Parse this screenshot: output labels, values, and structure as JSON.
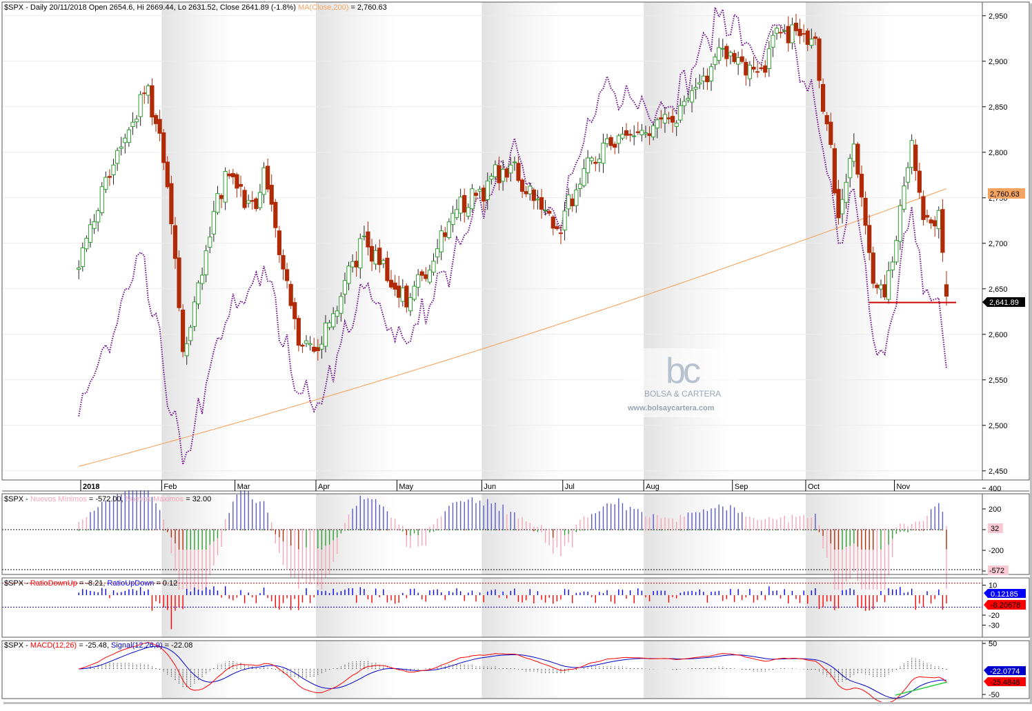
{
  "colors": {
    "up_candle": "#2e9e2e",
    "down_candle": "#b02a07",
    "ma200": "#f4a460",
    "breadth_line": "#6a0a8a",
    "support_line": "#cc0000",
    "new_lows_pink": "#f4a6b8",
    "new_highs_blue": "#5a5ac8",
    "ratio_red": "#ff0000",
    "ratio_blue": "#0000ff",
    "macd_red": "#ff0000",
    "signal_blue": "#0000cc",
    "trend_green": "#2ecc40"
  },
  "watermark": {
    "brand": "BOLSA & CARTERA",
    "url": "www.bolsaycartera.com"
  },
  "chart_data": [
    {
      "type": "candlestick",
      "panel": "price",
      "symbol": "$SPX",
      "title_parts": [
        "$SPX - Daily 20/11/2018 Open 2654.6, Hi 2669.44, Lo 2631.52, Close 2641.89 (-1.8%) ",
        "MA(Close,200)",
        " = 2,760.63"
      ],
      "x_tick_labels": [
        "2018",
        "Feb",
        "Mar",
        "Apr",
        "May",
        "Jun",
        "Jul",
        "Aug",
        "Sep",
        "Oct",
        "Nov"
      ],
      "y_tick_labels": [
        "2,950",
        "2,900",
        "2,850",
        "2,800",
        "2,750",
        "2,700",
        "2,650",
        "2,600",
        "2,550",
        "2,500",
        "2,450"
      ],
      "ylim": [
        2440,
        2965
      ],
      "last_close_label": "2,641.89",
      "ma200_label": "2,760.63",
      "support_level": 2635,
      "anchors": [
        {
          "date": "2017-12-29",
          "close": 2673
        },
        {
          "date": "2018-01-02",
          "close": 2695
        },
        {
          "date": "2018-01-12",
          "close": 2786
        },
        {
          "date": "2018-01-26",
          "close": 2873
        },
        {
          "date": "2018-02-02",
          "close": 2762
        },
        {
          "date": "2018-02-08",
          "close": 2581
        },
        {
          "date": "2018-02-26",
          "close": 2779
        },
        {
          "date": "2018-03-08",
          "close": 2738
        },
        {
          "date": "2018-03-12",
          "close": 2783
        },
        {
          "date": "2018-03-23",
          "close": 2588
        },
        {
          "date": "2018-04-02",
          "close": 2582
        },
        {
          "date": "2018-04-18",
          "close": 2708
        },
        {
          "date": "2018-05-03",
          "close": 2630
        },
        {
          "date": "2018-05-21",
          "close": 2733
        },
        {
          "date": "2018-06-12",
          "close": 2786
        },
        {
          "date": "2018-06-28",
          "close": 2716
        },
        {
          "date": "2018-07-17",
          "close": 2810
        },
        {
          "date": "2018-07-27",
          "close": 2818
        },
        {
          "date": "2018-08-10",
          "close": 2833
        },
        {
          "date": "2018-08-29",
          "close": 2914
        },
        {
          "date": "2018-09-12",
          "close": 2888
        },
        {
          "date": "2018-09-20",
          "close": 2931
        },
        {
          "date": "2018-10-03",
          "close": 2925
        },
        {
          "date": "2018-10-11",
          "close": 2728
        },
        {
          "date": "2018-10-17",
          "close": 2809
        },
        {
          "date": "2018-10-24",
          "close": 2656
        },
        {
          "date": "2018-10-29",
          "close": 2641
        },
        {
          "date": "2018-11-07",
          "close": 2813
        },
        {
          "date": "2018-11-12",
          "close": 2726
        },
        {
          "date": "2018-11-16",
          "close": 2736
        },
        {
          "date": "2018-11-19",
          "close": 2690
        },
        {
          "date": "2018-11-20",
          "open": 2654.6,
          "high": 2669.44,
          "low": 2631.52,
          "close": 2641.89
        }
      ],
      "breadth_line_anchors": [
        {
          "date": "2017-12-29",
          "value": 2510
        },
        {
          "date": "2018-01-12",
          "value": 2600
        },
        {
          "date": "2018-01-24",
          "value": 2690
        },
        {
          "date": "2018-02-08",
          "value": 2457
        },
        {
          "date": "2018-02-26",
          "value": 2612
        },
        {
          "date": "2018-03-12",
          "value": 2675
        },
        {
          "date": "2018-03-23",
          "value": 2535
        },
        {
          "date": "2018-04-02",
          "value": 2525
        },
        {
          "date": "2018-04-18",
          "value": 2650
        },
        {
          "date": "2018-05-03",
          "value": 2590
        },
        {
          "date": "2018-05-21",
          "value": 2680
        },
        {
          "date": "2018-06-12",
          "value": 2800
        },
        {
          "date": "2018-06-28",
          "value": 2725
        },
        {
          "date": "2018-07-17",
          "value": 2870
        },
        {
          "date": "2018-07-27",
          "value": 2855
        },
        {
          "date": "2018-08-10",
          "value": 2850
        },
        {
          "date": "2018-08-29",
          "value": 2957
        },
        {
          "date": "2018-09-12",
          "value": 2900
        },
        {
          "date": "2018-09-20",
          "value": 2940
        },
        {
          "date": "2018-10-03",
          "value": 2850
        },
        {
          "date": "2018-10-11",
          "value": 2700
        },
        {
          "date": "2018-10-17",
          "value": 2760
        },
        {
          "date": "2018-10-24",
          "value": 2595
        },
        {
          "date": "2018-10-29",
          "value": 2578
        },
        {
          "date": "2018-11-07",
          "value": 2740
        },
        {
          "date": "2018-11-12",
          "value": 2645
        },
        {
          "date": "2018-11-16",
          "value": 2640
        },
        {
          "date": "2018-11-20",
          "value": 2562
        }
      ]
    },
    {
      "type": "bar",
      "panel": "new_highs_lows",
      "title_parts": [
        "$SPX - ",
        "Nuevos Mínimos",
        " = -572.00, ",
        "Nuevos Máximos",
        " = 32.00"
      ],
      "y_tick_labels": [
        "400",
        "200",
        "0",
        "-200",
        "-400"
      ],
      "ylim": [
        -590,
        480
      ],
      "last_values": {
        "new_highs": 32,
        "new_lows": -572
      },
      "value_labels": [
        "32",
        "-572"
      ]
    },
    {
      "type": "bar",
      "panel": "ratio",
      "title_parts": [
        "$SPX - ",
        "RatioDownUp",
        " = -8.21, ",
        "RatioUpDown",
        " = 0.12"
      ],
      "y_tick_labels": [
        "10",
        "-20",
        "-30"
      ],
      "ylim": [
        -36,
        12
      ],
      "last_values": {
        "ratio_up_down": 0.12185,
        "ratio_down_up": -8.20678
      },
      "value_labels": [
        "0.12185",
        "-8.20678"
      ]
    },
    {
      "type": "line",
      "panel": "macd",
      "title_parts": [
        "$SPX - ",
        "MACD(12,26)",
        " = -25.48, ",
        "Signal(12,26,9)",
        " = -22.08"
      ],
      "y_tick_labels": [
        "50",
        "-50"
      ],
      "ylim": [
        -62,
        58
      ],
      "last_values": {
        "macd": -25.4848,
        "signal": -22.0774
      },
      "value_labels": [
        "-22.0774",
        "-25.4848"
      ]
    }
  ]
}
